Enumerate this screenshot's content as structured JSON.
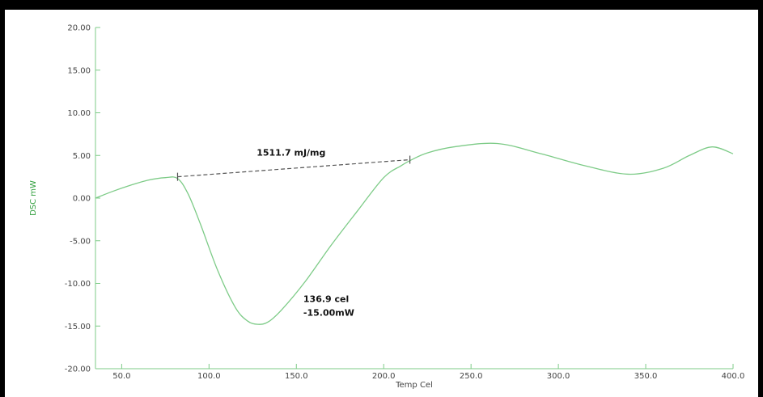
{
  "chart_data": {
    "type": "line",
    "title": "",
    "xlabel": "Temp Cel",
    "ylabel": "DSC mW",
    "xlim": [
      35,
      400
    ],
    "ylim": [
      -20,
      20
    ],
    "x_ticks": [
      50,
      100,
      150,
      200,
      250,
      300,
      350,
      400
    ],
    "x_tick_labels": [
      "50.0",
      "100.0",
      "150.0",
      "200.0",
      "250.0",
      "300.0",
      "350.0",
      "400.0"
    ],
    "y_ticks": [
      20,
      15,
      10,
      5,
      0,
      -5,
      -10,
      -15,
      -20
    ],
    "y_tick_labels": [
      "20.00",
      "15.00",
      "10.00",
      "5.00",
      "0.00",
      "-5.00",
      "-10.00",
      "-15.00",
      "-20.00"
    ],
    "grid": false,
    "colors": {
      "curve": "#7dcb87",
      "axis": "#7dcb87",
      "baseline": "#555555",
      "ylabel": "#2f9e3c"
    },
    "series": [
      {
        "x": [
          35,
          45,
          55,
          65,
          75,
          82,
          88,
          95,
          105,
          115,
          122,
          128,
          134,
          142,
          155,
          170,
          185,
          200,
          210,
          216,
          225,
          240,
          265,
          290,
          315,
          340,
          360,
          375,
          388,
          400
        ],
        "y": [
          0.0,
          0.8,
          1.5,
          2.1,
          2.4,
          2.3,
          0.5,
          -3.0,
          -8.5,
          -12.8,
          -14.4,
          -14.8,
          -14.5,
          -13.0,
          -9.8,
          -5.5,
          -1.5,
          2.4,
          3.8,
          4.5,
          5.3,
          6.0,
          6.4,
          5.2,
          3.8,
          2.8,
          3.5,
          5.0,
          6.0,
          5.2
        ]
      }
    ],
    "baseline": {
      "start": {
        "x": 82,
        "y": 2.5
      },
      "end": {
        "x": 215,
        "y": 4.5
      }
    },
    "annotations": [
      {
        "text": "1511.7 mJ/mg",
        "x": 147,
        "y": 5.0
      },
      {
        "text": "136.9 cel",
        "x": 140,
        "y": -12.2
      },
      {
        "text": "-15.00mW",
        "x": 140,
        "y": -13.8
      }
    ]
  }
}
